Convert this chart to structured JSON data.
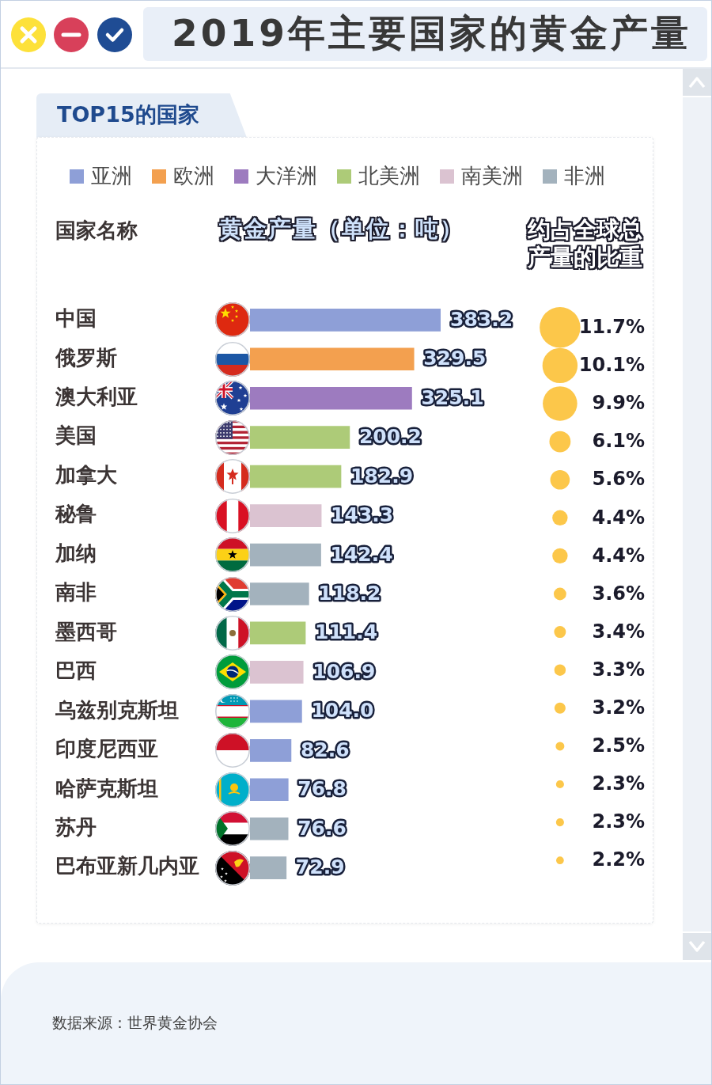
{
  "chart_data": [
    {
      "type": "bar",
      "orientation": "horizontal",
      "title": "2019年主要国家的黄金产量",
      "subtitle": "TOP15的国家",
      "xlabel": "黄金产量（单位：吨）",
      "ylabel": "国家名称",
      "categories": [
        "中国",
        "俄罗斯",
        "澳大利亚",
        "美国",
        "加拿大",
        "秘鲁",
        "加纳",
        "南非",
        "墨西哥",
        "巴西",
        "乌兹别克斯坦",
        "印度尼西亚",
        "哈萨克斯坦",
        "苏丹",
        "巴布亚新几内亚"
      ],
      "series": [
        {
          "name": "亚洲",
          "color": "#8e9fd7",
          "values": [
            383.2,
            null,
            null,
            null,
            null,
            null,
            null,
            null,
            null,
            null,
            104.0,
            82.6,
            76.8,
            null,
            null
          ],
          "value_labels": [
            "383.2",
            null,
            null,
            null,
            null,
            null,
            null,
            null,
            null,
            null,
            "104.0",
            "82.6",
            "76.8",
            null,
            null
          ]
        },
        {
          "name": "欧洲",
          "color": "#f3a04f",
          "values": [
            null,
            329.5,
            null,
            null,
            null,
            null,
            null,
            null,
            null,
            null,
            null,
            null,
            null,
            null,
            null
          ],
          "value_labels": [
            null,
            "329.5",
            null,
            null,
            null,
            null,
            null,
            null,
            null,
            null,
            null,
            null,
            null,
            null,
            null
          ]
        },
        {
          "name": "大洋洲",
          "color": "#9d7bbf",
          "values": [
            null,
            null,
            325.1,
            null,
            null,
            null,
            null,
            null,
            null,
            null,
            null,
            null,
            null,
            null,
            null
          ],
          "value_labels": [
            null,
            null,
            "325.1",
            null,
            null,
            null,
            null,
            null,
            null,
            null,
            null,
            null,
            null,
            null,
            null
          ]
        },
        {
          "name": "北美洲",
          "color": "#adcb78",
          "values": [
            null,
            null,
            null,
            200.2,
            182.9,
            null,
            null,
            null,
            111.4,
            null,
            null,
            null,
            null,
            null,
            null
          ],
          "value_labels": [
            null,
            null,
            null,
            "200.2",
            "182.9",
            null,
            null,
            null,
            "111.4",
            null,
            null,
            null,
            null,
            null,
            null
          ]
        },
        {
          "name": "南美洲",
          "color": "#dbc3d1",
          "values": [
            null,
            null,
            null,
            null,
            null,
            143.3,
            null,
            null,
            null,
            106.9,
            null,
            null,
            null,
            null,
            null
          ],
          "value_labels": [
            null,
            null,
            null,
            null,
            null,
            "143.3",
            null,
            null,
            null,
            "106.9",
            null,
            null,
            null,
            null,
            null
          ]
        },
        {
          "name": "非洲",
          "color": "#a3b2bd",
          "values": [
            null,
            null,
            null,
            null,
            null,
            null,
            142.4,
            118.2,
            null,
            null,
            null,
            null,
            null,
            76.6,
            72.9
          ],
          "value_labels": [
            null,
            null,
            null,
            null,
            null,
            null,
            "142.4",
            "118.2",
            null,
            null,
            null,
            null,
            null,
            "76.6",
            "72.9"
          ]
        }
      ],
      "legend": "top",
      "annotations": [
        "数据来源：世界黄金协会"
      ]
    },
    {
      "type": "other",
      "title": "约占全球总产量的比重",
      "values": [
        11.7,
        10.1,
        9.9,
        6.1,
        5.6,
        4.4,
        4.4,
        3.6,
        3.4,
        3.3,
        3.2,
        2.5,
        2.3,
        2.3,
        2.2
      ],
      "value_labels": [
        "11.7%",
        "10.1%",
        "9.9%",
        "6.1%",
        "5.6%",
        "4.4%",
        "4.4%",
        "3.6%",
        "3.4%",
        "3.3%",
        "3.2%",
        "2.5%",
        "2.3%",
        "2.3%",
        "2.2%"
      ],
      "color": "#fcc74a"
    }
  ]
}
